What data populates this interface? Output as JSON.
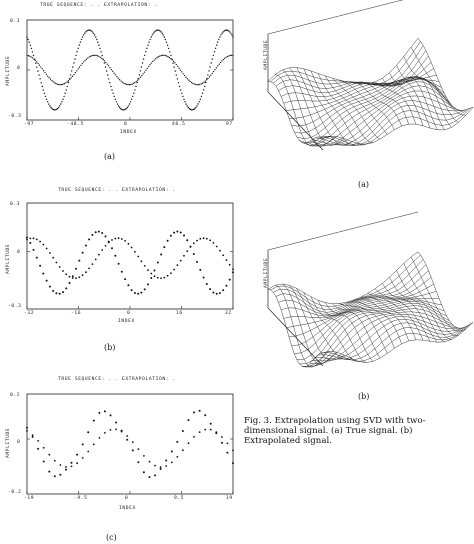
{
  "panels": [
    {
      "legend": "TRUE SEQUENCE: . . EXTRAPOLATION: .",
      "ytick_top": "0.3",
      "ytick_mid": "0",
      "ytick_bottom": "-0.3",
      "ylabel": "AMPLITUDE",
      "xlabel": "INDEX",
      "xticks": [
        "-97",
        "-48.5",
        "0",
        "48.5",
        "97"
      ],
      "caption": "(a)"
    },
    {
      "legend": "TRUE SEQUENCE: . . EXTRAPOLATION: .",
      "ytick_top": "0.3",
      "ytick_mid": "0",
      "ytick_bottom": "-0.3",
      "ylabel": "AMPLITUDE",
      "xlabel": "INDEX",
      "xticks": [
        "-32",
        "-16",
        "0",
        "16",
        "32"
      ],
      "caption": "(b)"
    },
    {
      "legend": "TRUE SEQUENCE: . . EXTRAPOLATION: .",
      "ytick_top": "0.2",
      "ytick_mid": "0",
      "ytick_bottom": "-0.2",
      "ylabel": "AMPLITUDE",
      "xlabel": "INDEX",
      "xticks": [
        "-19",
        "-9.5",
        "0",
        "9.5",
        "19"
      ],
      "caption": "(c)"
    }
  ],
  "surfaces": [
    {
      "caption": "(a)",
      "zlabel": "AMPLITUDE"
    },
    {
      "caption": "(b)",
      "zlabel": "AMPLITUDE"
    }
  ],
  "figure_caption": "Fig. 3. Extrapolation using SVD with two-dimensional signal. (a) True signal. (b) Extrapolated signal."
}
